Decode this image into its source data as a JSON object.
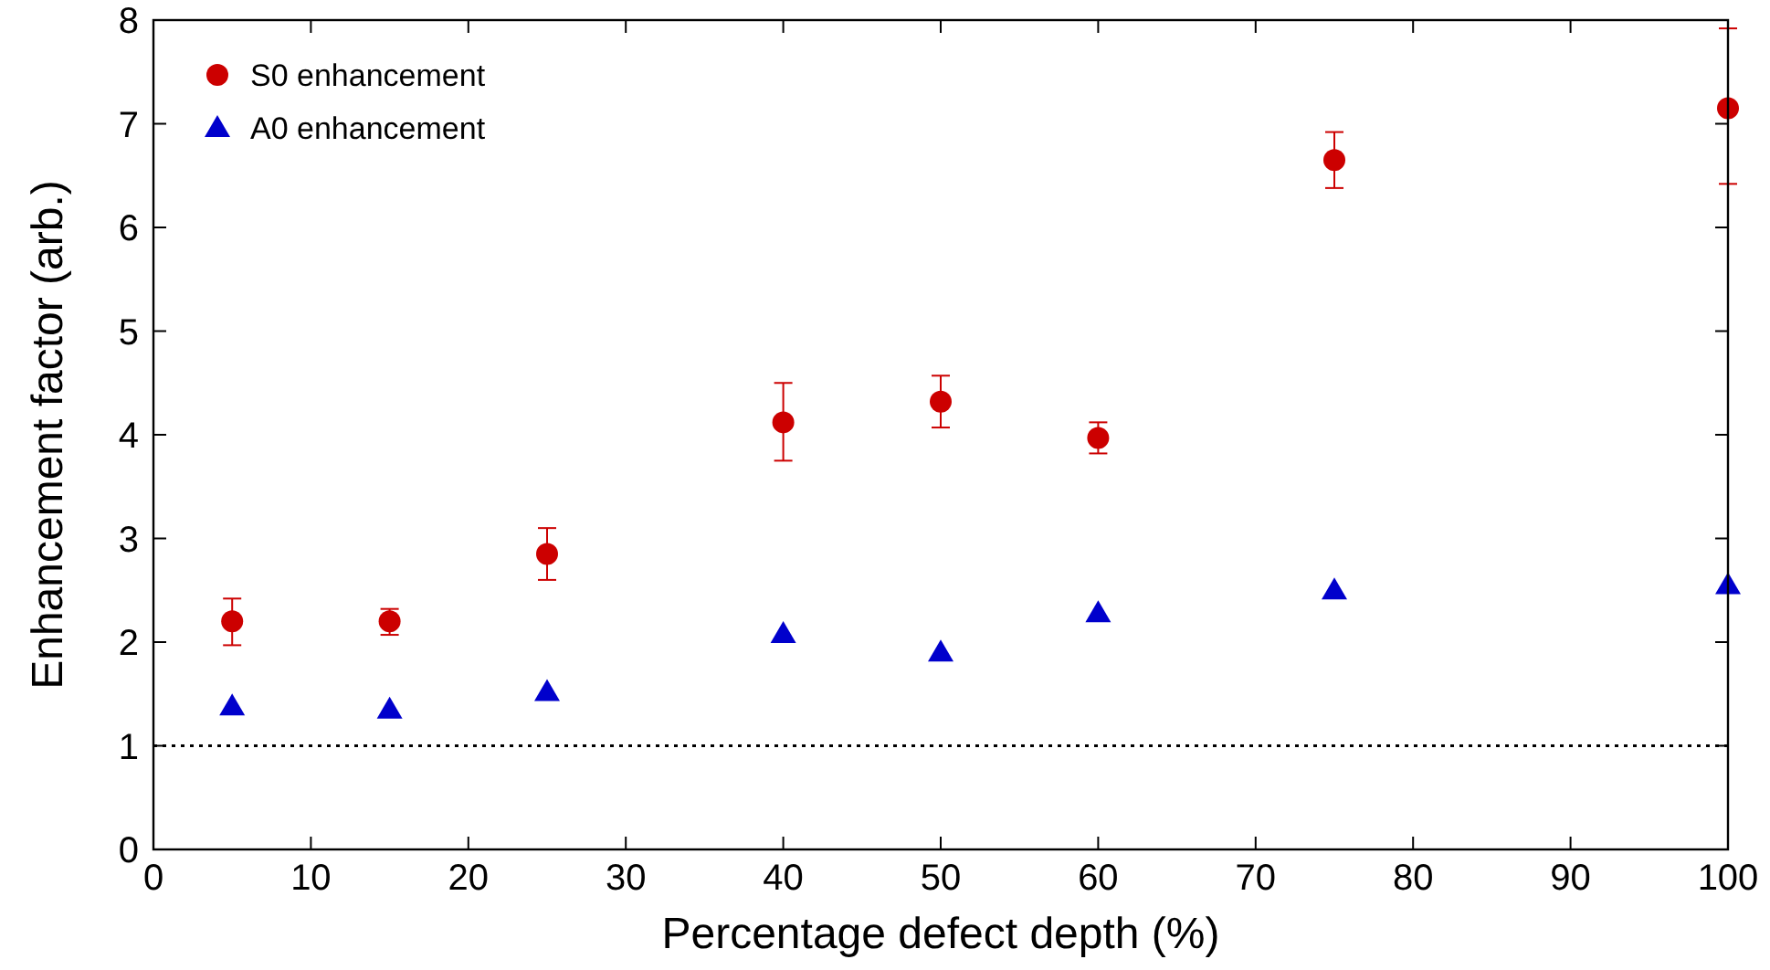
{
  "chart_data": {
    "type": "scatter",
    "xlabel": "Percentage defect depth (%)",
    "ylabel": "Enhancement factor (arb.)",
    "x": [
      5,
      15,
      25,
      40,
      50,
      60,
      75,
      100
    ],
    "series": [
      {
        "name": "S0 enhancement",
        "color": "#cc0000",
        "marker": "circle",
        "values": [
          2.2,
          2.2,
          2.85,
          4.12,
          4.32,
          3.97,
          6.65,
          7.15
        ],
        "errors": [
          [
            1.97,
            2.42
          ],
          [
            2.07,
            2.32
          ],
          [
            2.6,
            3.1
          ],
          [
            3.75,
            4.5
          ],
          [
            4.07,
            4.57
          ],
          [
            3.82,
            4.12
          ],
          [
            6.38,
            6.92
          ],
          [
            6.42,
            7.92
          ]
        ]
      },
      {
        "name": "A0 enhancement",
        "color": "#0000cc",
        "marker": "triangle",
        "values": [
          1.38,
          1.35,
          1.52,
          2.08,
          1.9,
          2.28,
          2.5,
          2.55
        ]
      }
    ],
    "xlim": [
      0,
      100
    ],
    "xticks": [
      0,
      10,
      20,
      30,
      40,
      50,
      60,
      70,
      80,
      90,
      100
    ],
    "ylim": [
      0,
      8
    ],
    "yticks": [
      0,
      1,
      2,
      3,
      4,
      5,
      6,
      7,
      8
    ],
    "ref_lines": [
      {
        "axis": "y",
        "value": 1,
        "color": "#000000",
        "line_style": "dotted"
      }
    ],
    "legend": "top left",
    "grid": false
  }
}
